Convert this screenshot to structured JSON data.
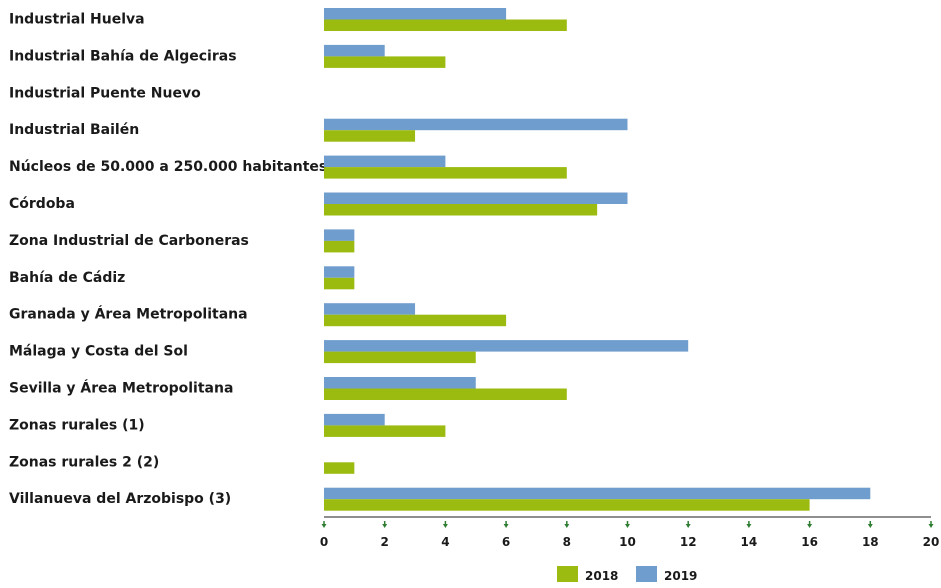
{
  "chart_data": {
    "type": "bar",
    "orientation": "horizontal",
    "categories": [
      "Industrial Huelva",
      "Industrial Bahía de Algeciras",
      "Industrial Puente Nuevo",
      "Industrial Bailén",
      "Núcleos de 50.000 a 250.000 habitantes",
      "Córdoba",
      "Zona Industrial de Carboneras",
      "Bahía de Cádiz",
      "Granada y Área Metropolitana",
      "Málaga y Costa del Sol",
      "Sevilla y Área Metropolitana",
      "Zonas rurales (1)",
      "Zonas rurales 2 (2)",
      "Villanueva del Arzobispo (3)"
    ],
    "series": [
      {
        "name": "2019",
        "color": "#6f9dce",
        "values": [
          6,
          2,
          0,
          10,
          4,
          10,
          1,
          1,
          3,
          12,
          5,
          2,
          0,
          18
        ]
      },
      {
        "name": "2018",
        "color": "#9bbb10",
        "values": [
          8,
          4,
          0,
          3,
          8,
          9,
          1,
          1,
          6,
          5,
          8,
          4,
          1,
          16
        ]
      }
    ],
    "xlim": [
      0,
      20
    ],
    "xticks": [
      "0",
      "2",
      "4",
      "6",
      "8",
      "10",
      "12",
      "14",
      "16",
      "18",
      "20"
    ],
    "legend": [
      {
        "label": "2018",
        "color": "#9bbb10"
      },
      {
        "label": "2019",
        "color": "#6f9dce"
      }
    ],
    "legend_position": "bottom-center",
    "grid": false,
    "axis_color": "#1f1f1f",
    "tick_marker_color": "#2e7d32"
  }
}
